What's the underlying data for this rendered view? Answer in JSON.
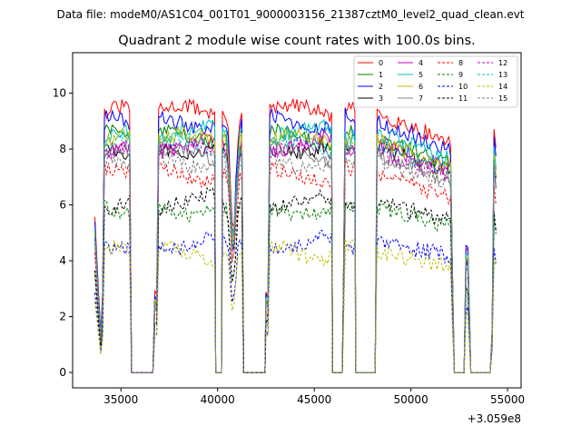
{
  "figure": {
    "suptitle": "Data file: modeM0/AS1C04_001T01_9000003156_21387cztM0_level2_quad_clean.evt"
  },
  "chart_data": {
    "type": "line",
    "title": "Quadrant 2 module wise count rates with 100.0s bins.",
    "xlabel": "",
    "ylabel": "",
    "x_offset_text": "+3.059e8",
    "xlim": [
      32500,
      55700
    ],
    "ylim": [
      -0.55,
      11.45
    ],
    "xticks": [
      35000,
      40000,
      45000,
      50000,
      55000
    ],
    "xtick_labels": [
      "35000",
      "40000",
      "45000",
      "50000",
      "55000"
    ],
    "yticks": [
      0,
      2,
      4,
      6,
      8,
      10
    ],
    "ytick_labels": [
      "0",
      "2",
      "4",
      "6",
      "8",
      "10"
    ],
    "segments": [
      {
        "start": 33650,
        "end": 34050,
        "kind": "drop",
        "peak": 5.6
      },
      {
        "start": 34050,
        "end": 35550,
        "kind": "on"
      },
      {
        "start": 35550,
        "end": 36750,
        "kind": "off"
      },
      {
        "start": 36750,
        "end": 39900,
        "kind": "on"
      },
      {
        "start": 39900,
        "end": 40250,
        "kind": "off"
      },
      {
        "start": 40250,
        "end": 41350,
        "kind": "on_dip"
      },
      {
        "start": 41350,
        "end": 42500,
        "kind": "off"
      },
      {
        "start": 42500,
        "end": 45950,
        "kind": "on"
      },
      {
        "start": 45950,
        "end": 46500,
        "kind": "off"
      },
      {
        "start": 46500,
        "end": 47150,
        "kind": "on"
      },
      {
        "start": 47150,
        "end": 48250,
        "kind": "off"
      },
      {
        "start": 48250,
        "end": 52250,
        "kind": "on_decline"
      },
      {
        "start": 52250,
        "end": 52850,
        "kind": "off"
      },
      {
        "start": 52850,
        "end": 53100,
        "kind": "spike"
      },
      {
        "start": 53100,
        "end": 54200,
        "kind": "off"
      },
      {
        "start": 54200,
        "end": 54450,
        "kind": "spike_end"
      }
    ],
    "series": [
      {
        "name": "0",
        "color": "#ff0000",
        "dash": "solid",
        "level": 9.3
      },
      {
        "name": "1",
        "color": "#008000",
        "dash": "solid",
        "level": 8.4
      },
      {
        "name": "2",
        "color": "#0000ff",
        "dash": "solid",
        "level": 9.0
      },
      {
        "name": "3",
        "color": "#000000",
        "dash": "solid",
        "level": 8.1
      },
      {
        "name": "4",
        "color": "#bf00bf",
        "dash": "solid",
        "level": 8.2
      },
      {
        "name": "5",
        "color": "#00bfbf",
        "dash": "solid",
        "level": 8.6
      },
      {
        "name": "6",
        "color": "#bfbf00",
        "dash": "solid",
        "level": 8.3
      },
      {
        "name": "7",
        "color": "#808080",
        "dash": "solid",
        "level": 7.8
      },
      {
        "name": "8",
        "color": "#ff0000",
        "dash": "dashed",
        "level": 7.1
      },
      {
        "name": "9",
        "color": "#008000",
        "dash": "dashed",
        "level": 5.9
      },
      {
        "name": "10",
        "color": "#0000ff",
        "dash": "dashed",
        "level": 4.7
      },
      {
        "name": "11",
        "color": "#000000",
        "dash": "dashed",
        "level": 6.1
      },
      {
        "name": "12",
        "color": "#bf00bf",
        "dash": "dashed",
        "level": 7.9
      },
      {
        "name": "13",
        "color": "#00bfbf",
        "dash": "dashed",
        "level": 8.1
      },
      {
        "name": "14",
        "color": "#bfbf00",
        "dash": "dashed",
        "level": 4.3
      },
      {
        "name": "15",
        "color": "#808080",
        "dash": "dashed",
        "level": 7.6
      }
    ],
    "legend": {
      "location": "upper right",
      "columns": 4
    }
  }
}
